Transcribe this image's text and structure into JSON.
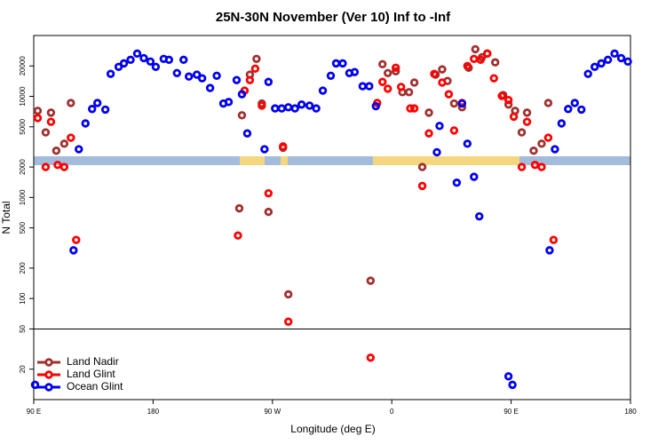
{
  "chart_data": {
    "type": "scatter",
    "title": "25N-30N November (Ver 10)   Inf to -Inf",
    "xlabel": "Longitude (deg E)",
    "ylabel": "N Total",
    "xlim": [
      90,
      540
    ],
    "xticks": [
      {
        "value": 90,
        "label": "90 E"
      },
      180,
      {
        "value": 270,
        "label": "90 W"
      },
      {
        "value": 360,
        "label": "0"
      },
      {
        "value": 450,
        "label": "90 E"
      },
      {
        "value": 540,
        "label": "180"
      }
    ],
    "ylim": [
      10,
      40000
    ],
    "yticks": [
      20,
      50,
      100,
      200,
      500,
      1000,
      2000,
      5000,
      10000,
      20000
    ],
    "log_y": true,
    "hline": 50,
    "legend": "bottomleft",
    "series": [
      {
        "name": "Land Nadir",
        "color": "#a0302e",
        "x": [
          93,
          99,
          103,
          107,
          113,
          118,
          245,
          247,
          253,
          258,
          262,
          267,
          278,
          282,
          344,
          353,
          357,
          363,
          368,
          373,
          377,
          383,
          388,
          393,
          398,
          402,
          407,
          413,
          418,
          423,
          428,
          432,
          438,
          444,
          448,
          453,
          458,
          462,
          467,
          473,
          478
        ],
        "values": [
          7200,
          4400,
          6900,
          2900,
          3400,
          8600,
          780,
          6500,
          16400,
          23500,
          8500,
          720,
          3100,
          110,
          150,
          20800,
          17000,
          17700,
          11000,
          11000,
          13700,
          2000,
          6900,
          16400,
          18500,
          14200,
          8500,
          7800,
          19200,
          29300,
          24400,
          26500,
          21700,
          10300,
          8300,
          7200,
          4400,
          6900,
          2900,
          3400,
          8600
        ]
      },
      {
        "name": "Land Glint",
        "color": "#ff0000",
        "x": [
          93,
          99,
          103,
          108,
          113,
          118,
          122,
          244,
          249,
          253,
          257,
          262,
          267,
          278,
          282,
          344,
          349,
          353,
          357,
          363,
          367,
          374,
          377,
          383,
          388,
          392,
          398,
          403,
          407,
          413,
          417,
          422,
          427,
          432,
          437,
          443,
          448,
          452,
          458,
          462,
          468,
          473,
          478,
          482
        ],
        "values": [
          6100,
          2000,
          5600,
          2100,
          2000,
          3900,
          380,
          420,
          11400,
          14500,
          18800,
          8100,
          1100,
          3200,
          59,
          26,
          8600,
          13900,
          11900,
          19200,
          12400,
          7600,
          7600,
          1300,
          4300,
          16700,
          13700,
          10500,
          4600,
          8600,
          20000,
          23500,
          23000,
          26500,
          15100,
          10100,
          9200,
          6300,
          2000,
          5600,
          2100,
          2000,
          3900,
          380
        ]
      },
      {
        "name": "Ocean Glint",
        "color": "#0000ee",
        "x": [
          91,
          120,
          124,
          129,
          134,
          138,
          144,
          148,
          154,
          158,
          163,
          168,
          173,
          178,
          182,
          188,
          192,
          198,
          203,
          207,
          213,
          217,
          223,
          228,
          233,
          237,
          243,
          247,
          251,
          264,
          267,
          272,
          277,
          282,
          287,
          292,
          298,
          303,
          308,
          314,
          318,
          323,
          328,
          332,
          338,
          343,
          348,
          394,
          396,
          409,
          413,
          417,
          422,
          426,
          448,
          451,
          479,
          483,
          488,
          493,
          498,
          503,
          508,
          513,
          518,
          523,
          528,
          533,
          538
        ],
        "values": [
          14,
          300,
          3000,
          5400,
          7500,
          8600,
          7400,
          16700,
          19600,
          21200,
          23000,
          26500,
          23900,
          22100,
          19600,
          23500,
          23000,
          17000,
          23000,
          15700,
          16400,
          15100,
          12100,
          16000,
          8500,
          8800,
          14500,
          10500,
          4300,
          3000,
          13900,
          7600,
          7600,
          7800,
          7600,
          8300,
          8100,
          7600,
          11400,
          16000,
          21200,
          21200,
          17000,
          17400,
          12600,
          12600,
          8000,
          2800,
          5100,
          1400,
          8500,
          3400,
          1600,
          650,
          17,
          14,
          300,
          3000,
          5400,
          7500,
          8600,
          7400,
          16700,
          19600,
          21200,
          23000,
          26500,
          23900,
          22100
        ]
      }
    ]
  }
}
